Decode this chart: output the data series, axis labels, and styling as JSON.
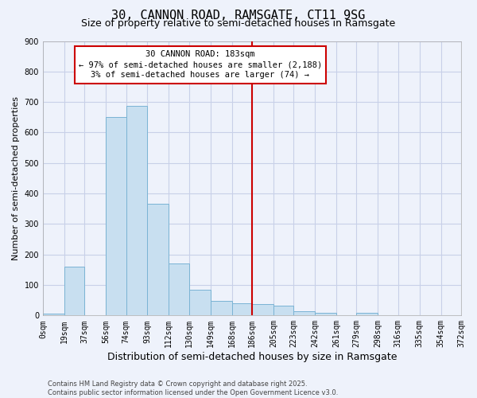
{
  "title": "30, CANNON ROAD, RAMSGATE, CT11 9SG",
  "subtitle": "Size of property relative to semi-detached houses in Ramsgate",
  "xlabel": "Distribution of semi-detached houses by size in Ramsgate",
  "ylabel": "Number of semi-detached properties",
  "bin_edges": [
    0,
    19,
    37,
    56,
    74,
    93,
    112,
    130,
    149,
    168,
    186,
    205,
    223,
    242,
    261,
    279,
    298,
    316,
    335,
    354,
    372
  ],
  "bar_heights": [
    7,
    160,
    0,
    652,
    688,
    365,
    170,
    85,
    48,
    40,
    37,
    32,
    13,
    10,
    0,
    8,
    0,
    0,
    0,
    0
  ],
  "bar_color": "#c8dff0",
  "bar_edge_color": "#7ab3d4",
  "vline_x": 186,
  "vline_color": "#cc0000",
  "ylim": [
    0,
    900
  ],
  "yticks": [
    0,
    100,
    200,
    300,
    400,
    500,
    600,
    700,
    800,
    900
  ],
  "xtick_labels": [
    "0sqm",
    "19sqm",
    "37sqm",
    "56sqm",
    "74sqm",
    "93sqm",
    "112sqm",
    "130sqm",
    "149sqm",
    "168sqm",
    "186sqm",
    "205sqm",
    "223sqm",
    "242sqm",
    "261sqm",
    "279sqm",
    "298sqm",
    "316sqm",
    "335sqm",
    "354sqm",
    "372sqm"
  ],
  "annotation_title": "30 CANNON ROAD: 183sqm",
  "annotation_line1": "← 97% of semi-detached houses are smaller (2,188)",
  "annotation_line2": "3% of semi-detached houses are larger (74) →",
  "annotation_box_color": "#ffffff",
  "annotation_box_edge": "#cc0000",
  "footnote1": "Contains HM Land Registry data © Crown copyright and database right 2025.",
  "footnote2": "Contains public sector information licensed under the Open Government Licence v3.0.",
  "bg_color": "#eef2fb",
  "grid_color": "#c8d0e8",
  "title_fontsize": 11,
  "subtitle_fontsize": 9,
  "xlabel_fontsize": 9,
  "ylabel_fontsize": 8,
  "tick_fontsize": 7,
  "annotation_fontsize": 7.5,
  "footnote_fontsize": 6
}
